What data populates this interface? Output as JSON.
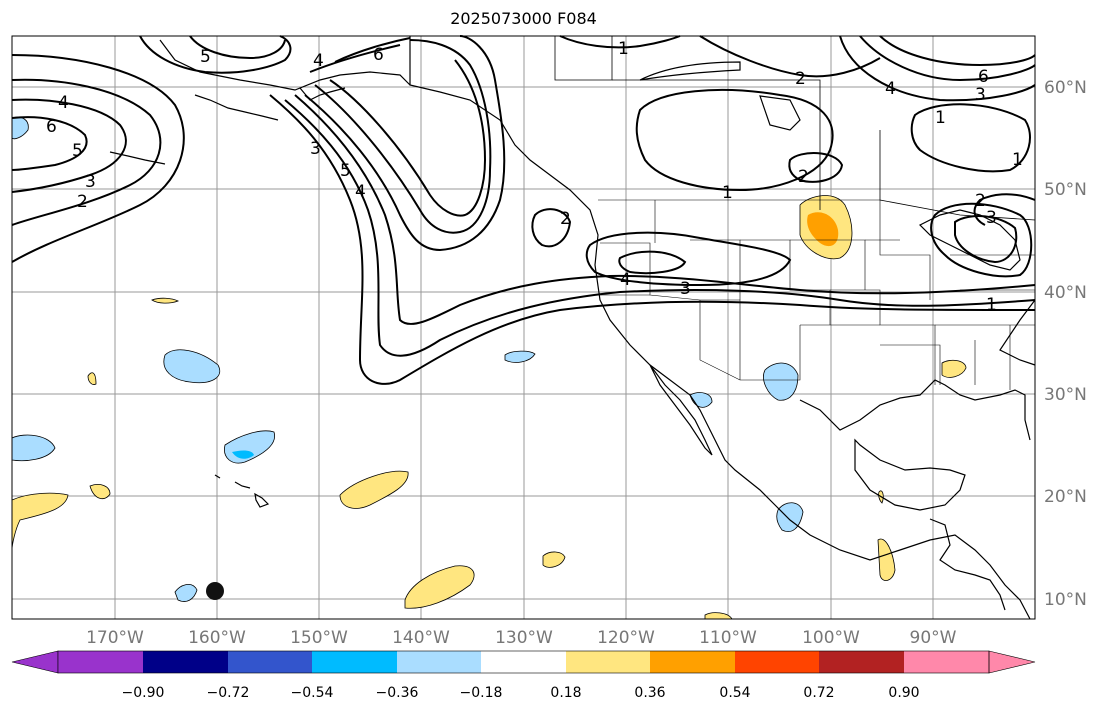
{
  "title": "2025073000 F084",
  "lon_labels": [
    "170°W",
    "160°W",
    "150°W",
    "140°W",
    "130°W",
    "120°W",
    "110°W",
    "100°W",
    "90°W"
  ],
  "lat_labels": [
    "60°N",
    "50°N",
    "40°N",
    "30°N",
    "20°N",
    "10°N"
  ],
  "colorbar": {
    "ticks": [
      "−0.90",
      "−0.72",
      "−0.54",
      "−0.36",
      "−0.18",
      "0.18",
      "0.36",
      "0.54",
      "0.72",
      "0.90"
    ],
    "colors": [
      "#9933cc",
      "#000088",
      "#3355cc",
      "#00bbff",
      "#aaddff",
      "#ffffff",
      "#ffe680",
      "#ffa000",
      "#ff4400",
      "#b22222",
      "#ff88aa"
    ]
  },
  "contour_labels": [
    "1",
    "1",
    "1",
    "1",
    "1",
    "2",
    "2",
    "2",
    "2",
    "2",
    "3",
    "3",
    "3",
    "3",
    "3",
    "4",
    "4",
    "4",
    "4",
    "4",
    "5",
    "5",
    "5",
    "6",
    "6",
    "6"
  ],
  "colors": {
    "land_outline": "#000000",
    "grid": "#999999",
    "positive_light": "#ffe680",
    "positive_mid": "#ffa000",
    "negative_light": "#aaddff",
    "negative_mid": "#00bbff"
  }
}
